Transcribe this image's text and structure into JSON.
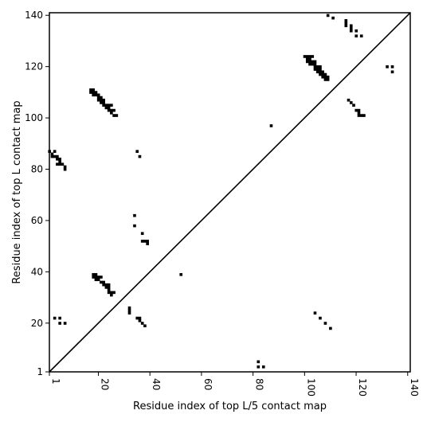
{
  "chart_data": {
    "type": "scatter",
    "title": "",
    "xlabel": "Residue index of top L/5 contact map",
    "ylabel": "Residue index of top L contact map",
    "xlim": [
      1,
      141
    ],
    "ylim": [
      1,
      141
    ],
    "x_ticks": [
      1,
      20,
      40,
      60,
      80,
      100,
      120,
      140
    ],
    "y_ticks": [
      1,
      20,
      40,
      60,
      80,
      100,
      120,
      140
    ],
    "grid": false,
    "diagonal_line": true,
    "marker": "square",
    "marker_color": "#000000",
    "lower_triangle_points": [
      [
        3,
        22
      ],
      [
        5,
        22
      ],
      [
        5,
        20
      ],
      [
        7,
        20
      ],
      [
        18,
        38
      ],
      [
        18,
        39
      ],
      [
        19,
        38
      ],
      [
        19,
        39
      ],
      [
        19,
        37
      ],
      [
        20,
        37
      ],
      [
        20,
        38
      ],
      [
        21,
        38
      ],
      [
        21,
        36
      ],
      [
        22,
        36
      ],
      [
        22,
        35
      ],
      [
        23,
        35
      ],
      [
        23,
        34
      ],
      [
        24,
        34
      ],
      [
        24,
        35
      ],
      [
        24,
        33
      ],
      [
        24,
        32
      ],
      [
        25,
        32
      ],
      [
        25,
        31
      ],
      [
        26,
        32
      ],
      [
        32,
        26
      ],
      [
        32,
        25
      ],
      [
        32,
        24
      ],
      [
        35,
        22
      ],
      [
        36,
        22
      ],
      [
        36,
        21
      ],
      [
        37,
        20
      ],
      [
        38,
        19
      ],
      [
        52,
        39
      ],
      [
        82,
        5
      ],
      [
        82,
        3
      ],
      [
        84,
        3
      ],
      [
        104,
        24
      ],
      [
        106,
        22
      ],
      [
        108,
        20
      ],
      [
        110,
        18
      ]
    ],
    "upper_triangle_points": [
      [
        1,
        87
      ],
      [
        2,
        86
      ],
      [
        3,
        85
      ],
      [
        2,
        85
      ],
      [
        4,
        85
      ],
      [
        3,
        87
      ],
      [
        4,
        84
      ],
      [
        5,
        84
      ],
      [
        5,
        83
      ],
      [
        4,
        82
      ],
      [
        5,
        82
      ],
      [
        6,
        82
      ],
      [
        7,
        81
      ],
      [
        7,
        80
      ],
      [
        17,
        110
      ],
      [
        17,
        111
      ],
      [
        18,
        110
      ],
      [
        18,
        111
      ],
      [
        18,
        109
      ],
      [
        19,
        109
      ],
      [
        19,
        110
      ],
      [
        20,
        109
      ],
      [
        20,
        108
      ],
      [
        21,
        108
      ],
      [
        20,
        107
      ],
      [
        21,
        107
      ],
      [
        22,
        107
      ],
      [
        22,
        106
      ],
      [
        21,
        106
      ],
      [
        22,
        105
      ],
      [
        23,
        105
      ],
      [
        23,
        104
      ],
      [
        24,
        104
      ],
      [
        24,
        105
      ],
      [
        25,
        105
      ],
      [
        24,
        103
      ],
      [
        25,
        103
      ],
      [
        26,
        103
      ],
      [
        25,
        102
      ],
      [
        26,
        101
      ],
      [
        27,
        101
      ],
      [
        35,
        87
      ],
      [
        36,
        85
      ],
      [
        34,
        62
      ],
      [
        34,
        58
      ],
      [
        37,
        55
      ],
      [
        37,
        52
      ],
      [
        38,
        52
      ],
      [
        39,
        52
      ],
      [
        39,
        51
      ],
      [
        87,
        97
      ],
      [
        100,
        124
      ],
      [
        101,
        124
      ],
      [
        102,
        124
      ],
      [
        103,
        124
      ],
      [
        101,
        123
      ],
      [
        102,
        123
      ],
      [
        101,
        122
      ],
      [
        102,
        122
      ],
      [
        103,
        122
      ],
      [
        104,
        122
      ],
      [
        102,
        121
      ],
      [
        103,
        121
      ],
      [
        104,
        121
      ],
      [
        104,
        120
      ],
      [
        105,
        120
      ],
      [
        106,
        120
      ],
      [
        104,
        119
      ],
      [
        105,
        119
      ],
      [
        106,
        119
      ],
      [
        105,
        118
      ],
      [
        106,
        118
      ],
      [
        107,
        118
      ],
      [
        106,
        117
      ],
      [
        107,
        117
      ],
      [
        108,
        117
      ],
      [
        107,
        116
      ],
      [
        108,
        116
      ],
      [
        109,
        116
      ],
      [
        108,
        115
      ],
      [
        109,
        115
      ],
      [
        109,
        140
      ],
      [
        111,
        139
      ],
      [
        116,
        138
      ],
      [
        116,
        137
      ],
      [
        116,
        136
      ],
      [
        118,
        136
      ],
      [
        118,
        135
      ],
      [
        118,
        134
      ],
      [
        120,
        134
      ],
      [
        120,
        132
      ],
      [
        122,
        132
      ],
      [
        117,
        107
      ],
      [
        118,
        106
      ],
      [
        119,
        105
      ],
      [
        120,
        103
      ],
      [
        121,
        103
      ],
      [
        121,
        102
      ],
      [
        122,
        101
      ],
      [
        123,
        101
      ],
      [
        121,
        101
      ],
      [
        132,
        120
      ],
      [
        134,
        120
      ],
      [
        134,
        118
      ]
    ]
  }
}
